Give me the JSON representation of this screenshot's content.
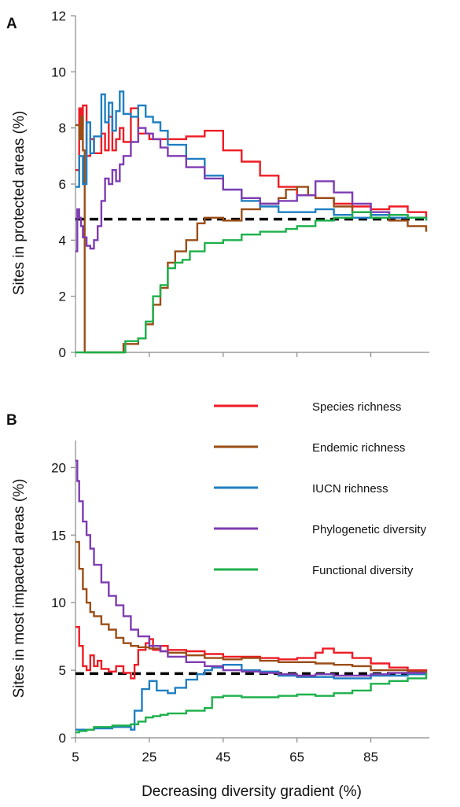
{
  "chart_data": [
    {
      "panel": "A",
      "type": "line",
      "ylabel": "Sites in protected areas (%)",
      "xlabel": "",
      "xlim": [
        5,
        100
      ],
      "ylim": [
        0,
        12
      ],
      "yticks": [
        0,
        2,
        4,
        6,
        8,
        10,
        12
      ],
      "reference_line": {
        "y": 4.75,
        "style": "dashed",
        "color": "#000000"
      },
      "series": [
        {
          "key": "species",
          "color": "#ee1c25",
          "x": [
            5,
            6,
            6.5,
            7,
            8,
            9,
            10,
            12,
            13,
            14,
            15,
            16,
            17,
            18,
            20,
            22,
            25,
            30,
            35,
            40,
            45,
            50,
            55,
            60,
            65,
            70,
            75,
            80,
            85,
            90,
            95,
            100
          ],
          "y": [
            6.5,
            8.7,
            8.0,
            8.8,
            7.0,
            7.6,
            7.1,
            7.8,
            7.2,
            8.4,
            7.2,
            7.6,
            8.0,
            7.5,
            8.7,
            7.8,
            7.6,
            7.6,
            7.7,
            7.9,
            7.2,
            6.8,
            6.3,
            5.9,
            5.6,
            5.5,
            5.3,
            5.2,
            5.1,
            5.2,
            5.0,
            4.8
          ]
        },
        {
          "key": "endemic",
          "color": "#9b4d16",
          "x": [
            5,
            6,
            6.5,
            7,
            7.5,
            8,
            8.5,
            15,
            18,
            20,
            22,
            24,
            26,
            28,
            30,
            32,
            35,
            38,
            40,
            45,
            50,
            55,
            60,
            62,
            65,
            68,
            70,
            75,
            80,
            85,
            90,
            95,
            100
          ],
          "y": [
            8.1,
            7.6,
            8.4,
            7.2,
            0,
            0,
            0,
            0,
            0.3,
            0.3,
            0.5,
            1.0,
            1.7,
            2.3,
            3.2,
            3.6,
            4.0,
            4.6,
            4.8,
            4.7,
            5.1,
            5.3,
            5.5,
            5.8,
            5.9,
            5.6,
            5.5,
            5.2,
            5.0,
            4.9,
            4.7,
            4.5,
            4.3
          ]
        },
        {
          "key": "iucn",
          "color": "#1f7fc1",
          "x": [
            5,
            6,
            7,
            8,
            9,
            10,
            12,
            13,
            14,
            15,
            16,
            17,
            18,
            20,
            22,
            24,
            26,
            28,
            30,
            35,
            40,
            45,
            50,
            55,
            60,
            65,
            70,
            75,
            80,
            85,
            90,
            95,
            100
          ],
          "y": [
            5.9,
            7.0,
            6.0,
            8.2,
            7.1,
            7.7,
            9.2,
            8.2,
            8.9,
            7.9,
            8.6,
            9.3,
            8.5,
            8.4,
            8.8,
            8.4,
            8.2,
            7.9,
            7.4,
            6.9,
            6.3,
            5.8,
            5.4,
            5.2,
            5.0,
            5.0,
            5.1,
            4.9,
            4.8,
            4.9,
            4.8,
            4.8,
            4.7
          ]
        },
        {
          "key": "phylo",
          "color": "#7e3cb2",
          "x": [
            5,
            5.5,
            6,
            6.5,
            7,
            8,
            9,
            10,
            11,
            12,
            13,
            14,
            15,
            16,
            17,
            18,
            20,
            22,
            24,
            26,
            28,
            30,
            35,
            40,
            45,
            50,
            55,
            60,
            65,
            70,
            75,
            80,
            85,
            90,
            95,
            100
          ],
          "y": [
            3.6,
            5.1,
            4.8,
            4.5,
            4.1,
            3.8,
            3.7,
            4.0,
            4.5,
            5.4,
            6.2,
            6.0,
            6.5,
            6.1,
            6.7,
            7.0,
            7.5,
            8.0,
            7.8,
            7.6,
            7.3,
            7.0,
            6.6,
            6.2,
            5.8,
            5.5,
            5.3,
            5.4,
            5.6,
            6.1,
            5.7,
            5.3,
            5.0,
            4.9,
            4.8,
            4.7
          ]
        },
        {
          "key": "func",
          "color": "#1db14b",
          "x": [
            5,
            18,
            18.5,
            22,
            24,
            26,
            28,
            30,
            32,
            34,
            36,
            38,
            40,
            45,
            50,
            55,
            60,
            62,
            65,
            70,
            75,
            80,
            85,
            90,
            95,
            100
          ],
          "y": [
            0,
            0,
            0.4,
            0.5,
            1.1,
            2.0,
            2.4,
            3.0,
            3.2,
            3.3,
            3.6,
            3.6,
            3.9,
            4.0,
            4.2,
            4.3,
            4.3,
            4.4,
            4.5,
            4.7,
            4.8,
            5.0,
            4.8,
            4.9,
            4.8,
            4.7
          ]
        }
      ]
    },
    {
      "panel": "B",
      "type": "line",
      "ylabel": "Sites in most impacted areas (%)",
      "xlabel": "Decreasing diversity gradient (%)",
      "xlim": [
        5,
        100
      ],
      "ylim": [
        0,
        22
      ],
      "yticks": [
        0,
        5,
        10,
        15,
        20
      ],
      "xticks": [
        5,
        25,
        45,
        65,
        85
      ],
      "reference_line": {
        "y": 4.75,
        "style": "dashed",
        "color": "#000000"
      },
      "series": [
        {
          "key": "species",
          "color": "#ee1c25",
          "x": [
            5,
            6,
            7,
            8,
            9,
            10,
            11,
            12,
            14,
            16,
            18,
            20,
            21,
            22,
            24,
            25,
            26,
            28,
            30,
            35,
            40,
            45,
            50,
            55,
            60,
            65,
            70,
            72,
            75,
            80,
            85,
            90,
            95,
            100
          ],
          "y": [
            8.2,
            6.8,
            5.3,
            5.0,
            6.1,
            5.3,
            5.7,
            5.1,
            4.9,
            5.3,
            4.8,
            4.4,
            5.4,
            6.5,
            7.0,
            7.3,
            6.5,
            6.8,
            6.5,
            6.4,
            6.2,
            6.0,
            6.0,
            5.9,
            5.8,
            5.9,
            6.3,
            6.6,
            6.3,
            5.9,
            5.5,
            5.2,
            5.0,
            4.9
          ]
        },
        {
          "key": "endemic",
          "color": "#9b4d16",
          "x": [
            5,
            6,
            7,
            8,
            9,
            10,
            12,
            14,
            16,
            18,
            20,
            22,
            25,
            28,
            30,
            35,
            40,
            45,
            50,
            55,
            60,
            65,
            70,
            75,
            80,
            85,
            90,
            95,
            100
          ],
          "y": [
            14.5,
            12.5,
            11.0,
            10.0,
            9.3,
            9.0,
            8.4,
            8.0,
            7.4,
            7.0,
            6.8,
            6.7,
            6.6,
            6.4,
            6.3,
            6.1,
            5.9,
            5.8,
            5.9,
            5.7,
            5.6,
            5.6,
            5.5,
            5.4,
            5.3,
            5.0,
            5.0,
            4.9,
            4.8
          ]
        },
        {
          "key": "iucn",
          "color": "#1f7fc1",
          "x": [
            5,
            8,
            10,
            15,
            20,
            21,
            23,
            25,
            27,
            30,
            32,
            35,
            38,
            40,
            42,
            45,
            50,
            55,
            60,
            65,
            70,
            75,
            80,
            85,
            90,
            95,
            100
          ],
          "y": [
            0.6,
            0.6,
            0.7,
            0.8,
            0.6,
            2.0,
            3.6,
            4.2,
            3.5,
            3.3,
            3.7,
            4.3,
            4.7,
            5.0,
            5.2,
            5.4,
            5.0,
            4.9,
            4.6,
            4.5,
            4.5,
            4.4,
            4.4,
            4.6,
            4.6,
            4.7,
            4.8
          ]
        },
        {
          "key": "phylo",
          "color": "#7e3cb2",
          "x": [
            5,
            5.5,
            6,
            7,
            8,
            9,
            10,
            12,
            14,
            16,
            18,
            20,
            22,
            25,
            28,
            30,
            35,
            40,
            45,
            50,
            55,
            60,
            65,
            70,
            75,
            80,
            85,
            90,
            95,
            100
          ],
          "y": [
            20.5,
            19.0,
            17.5,
            16.0,
            15.0,
            14.0,
            12.8,
            11.5,
            10.5,
            9.8,
            9.0,
            8.0,
            7.5,
            6.8,
            6.4,
            6.0,
            5.6,
            5.3,
            5.0,
            4.9,
            4.8,
            4.7,
            4.6,
            4.7,
            4.6,
            4.6,
            4.7,
            4.8,
            4.8,
            4.8
          ]
        },
        {
          "key": "func",
          "color": "#1db14b",
          "x": [
            5,
            6,
            8,
            10,
            15,
            20,
            22,
            24,
            26,
            28,
            30,
            35,
            40,
            42,
            45,
            50,
            55,
            60,
            65,
            70,
            75,
            80,
            85,
            90,
            95,
            100
          ],
          "y": [
            0.4,
            0.5,
            0.6,
            0.8,
            0.9,
            1.0,
            1.2,
            1.5,
            1.6,
            1.7,
            1.8,
            2.0,
            2.2,
            3.0,
            3.1,
            3.0,
            3.0,
            3.1,
            3.2,
            3.1,
            3.3,
            3.5,
            4.0,
            4.2,
            4.4,
            4.8
          ]
        }
      ]
    }
  ],
  "legend": {
    "placement": "top-right of panel B",
    "items": [
      {
        "key": "species",
        "label": "Species richness",
        "color": "#ee1c25"
      },
      {
        "key": "endemic",
        "label": "Endemic richness",
        "color": "#9b4d16"
      },
      {
        "key": "iucn",
        "label": "IUCN richness",
        "color": "#1f7fc1"
      },
      {
        "key": "phylo",
        "label": "Phylogenetic diversity",
        "color": "#7e3cb2"
      },
      {
        "key": "func",
        "label": "Functional diversity",
        "color": "#1db14b"
      }
    ]
  }
}
